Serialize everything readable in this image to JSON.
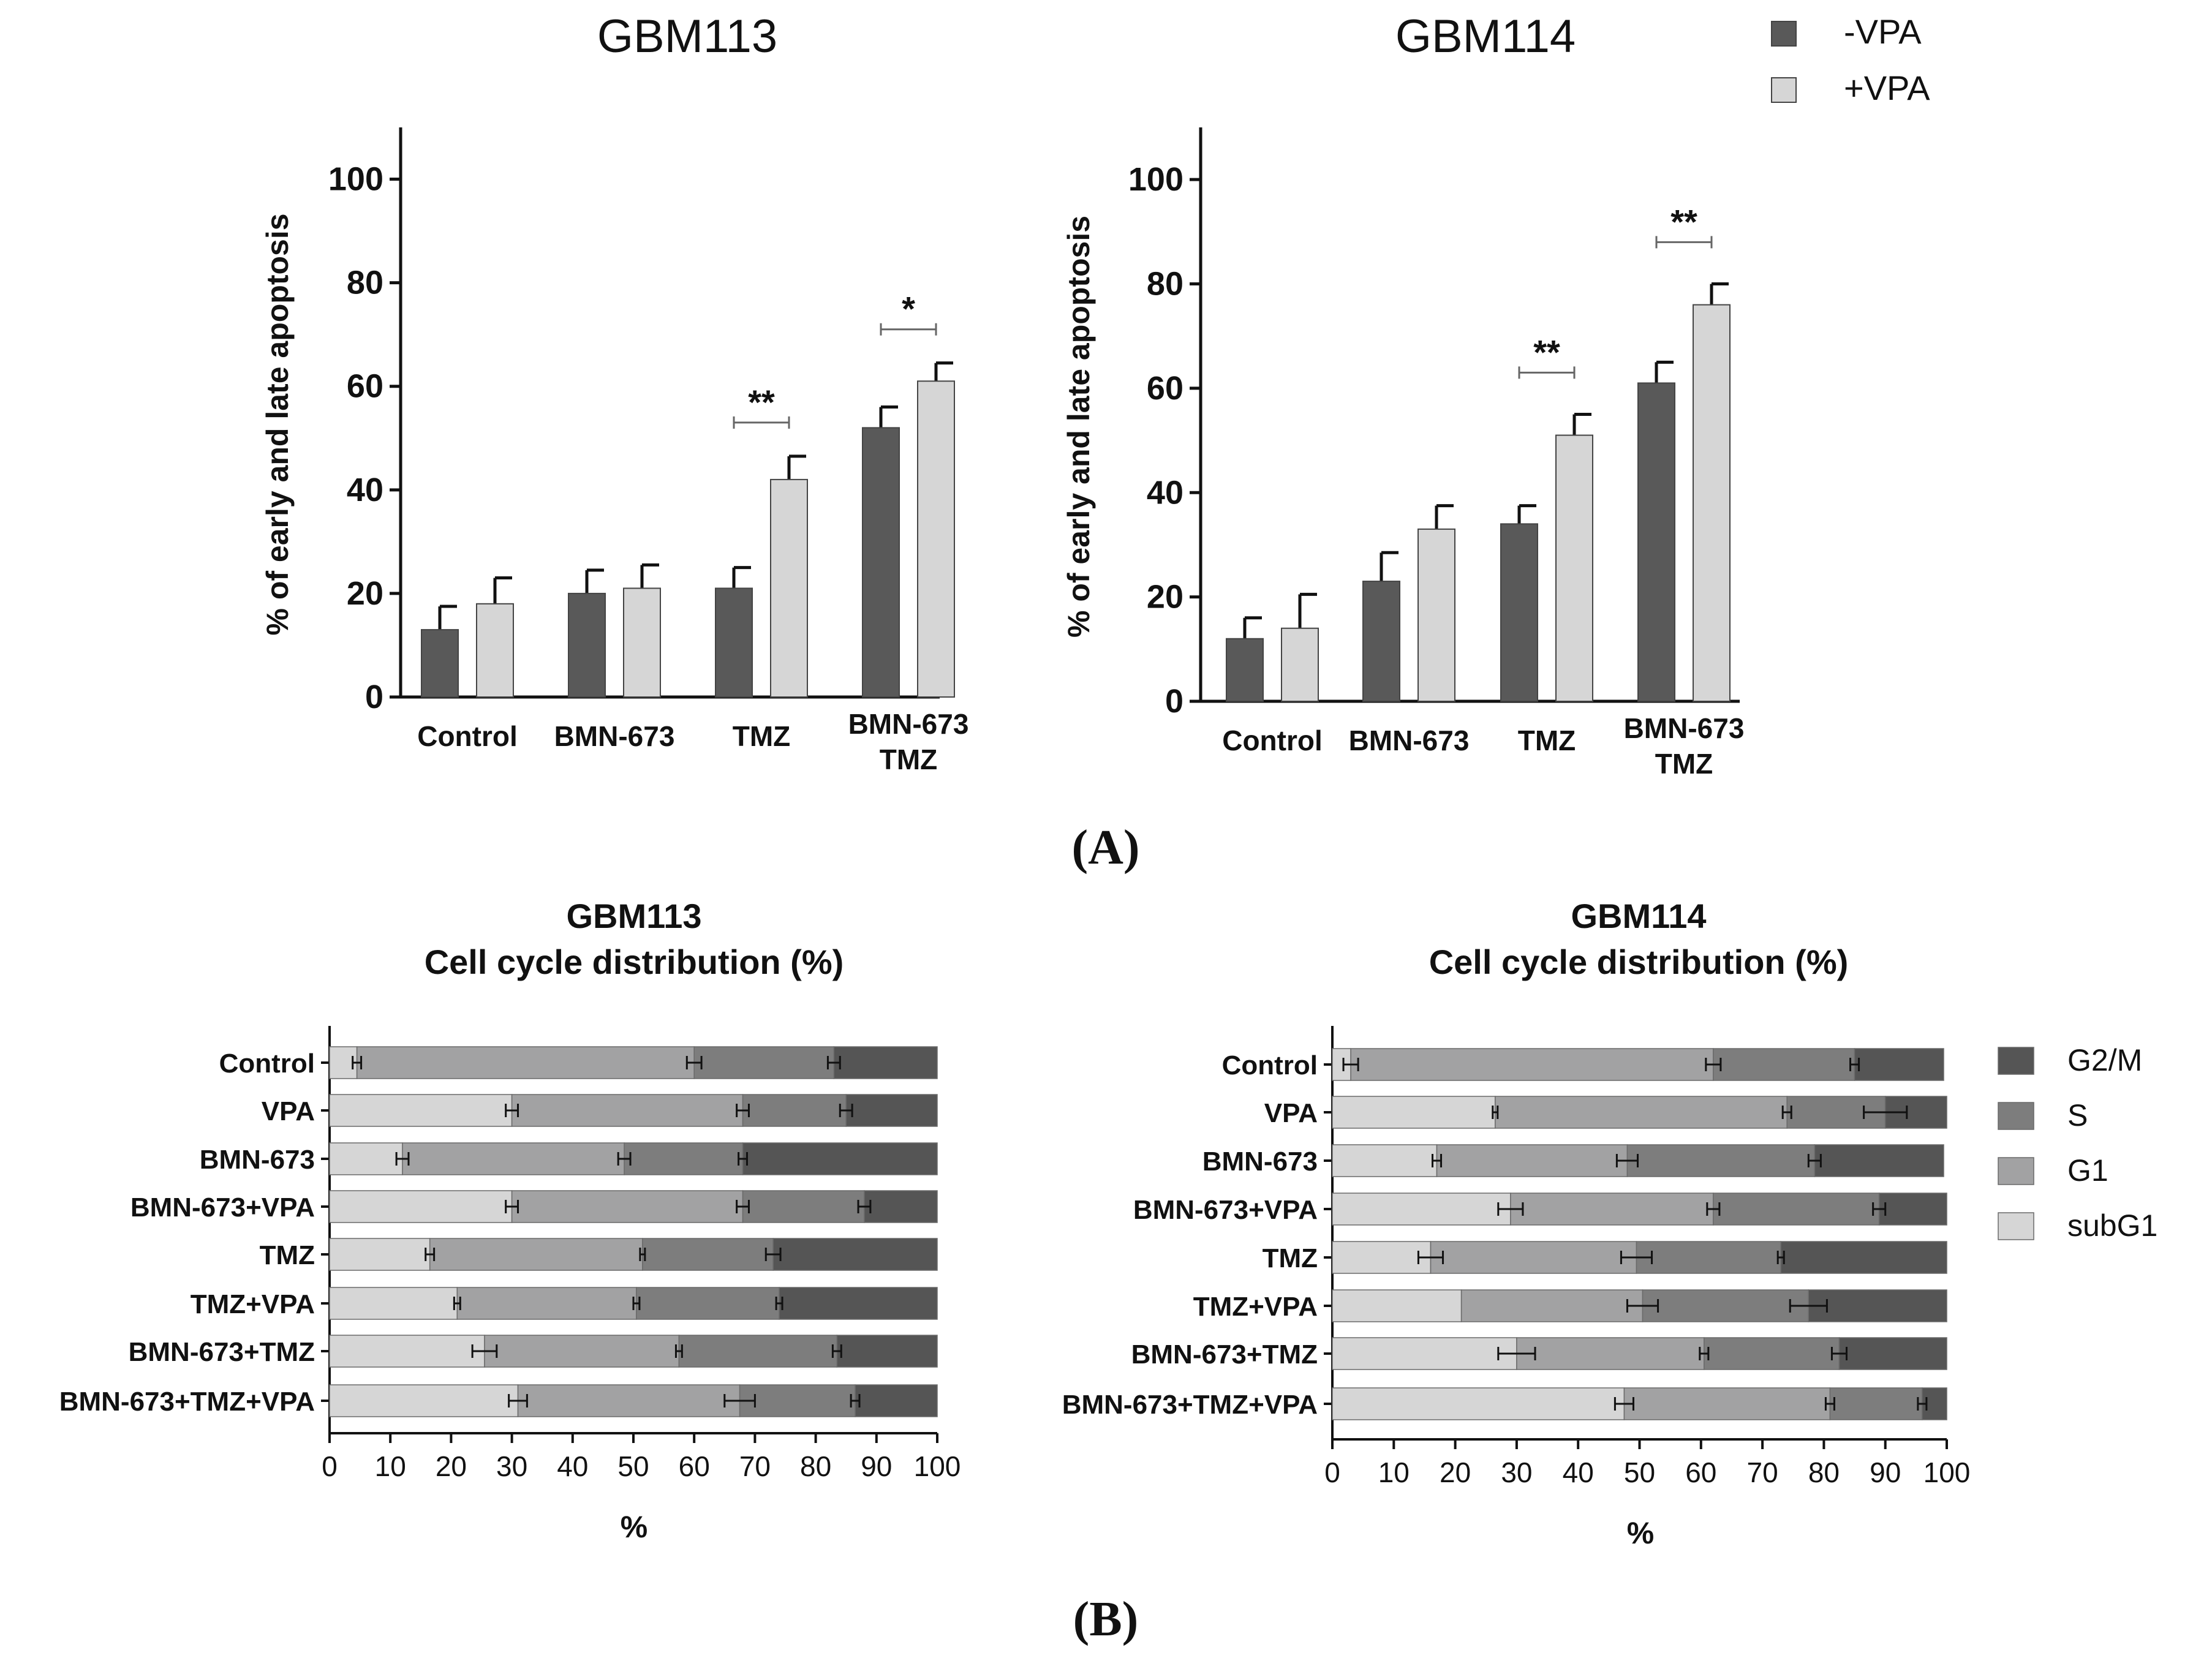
{
  "colors": {
    "dark": "#595959",
    "light": "#d6d6d6",
    "g2m": "#555555",
    "s": "#7d7d7d",
    "g1": "#a2a2a3",
    "subg1": "#d6d6d6",
    "axis": "#111111"
  },
  "panel_labels": {
    "a": "(A)",
    "b": "(B)"
  },
  "apoptosis_legend": [
    {
      "label": "-VPA",
      "color": "#595959"
    },
    {
      "label": "+VPA",
      "color": "#d6d6d6"
    }
  ],
  "cellcycle_legend": [
    {
      "label": "G2/M",
      "color": "#555555"
    },
    {
      "label": "S",
      "color": "#7d7d7d"
    },
    {
      "label": "G1",
      "color": "#a2a2a3"
    },
    {
      "label": "subG1",
      "color": "#d6d6d6"
    }
  ],
  "chart_data": [
    {
      "type": "bar",
      "title": "GBM113",
      "ylabel": "% of early and late apoptosis",
      "xlabel": "",
      "ylim": [
        0,
        110
      ],
      "yticks": [
        0,
        20,
        40,
        60,
        80,
        100
      ],
      "categories": [
        "Control",
        "BMN-673",
        "TMZ",
        "BMN-673\nTMZ"
      ],
      "series": [
        {
          "name": "-VPA",
          "values": [
            13,
            20,
            21,
            52
          ],
          "errors": [
            4.5,
            4.5,
            4,
            4
          ]
        },
        {
          "name": "+VPA",
          "values": [
            18,
            21,
            42,
            61
          ],
          "errors": [
            5,
            4.5,
            4.5,
            3.5
          ]
        }
      ],
      "significance": [
        {
          "category": 2,
          "label": "**",
          "y": 53
        },
        {
          "category": 3,
          "label": "*",
          "y": 71
        }
      ]
    },
    {
      "type": "bar",
      "title": "GBM114",
      "ylabel": "% of early and late apoptosis",
      "xlabel": "",
      "ylim": [
        0,
        110
      ],
      "yticks": [
        0,
        20,
        40,
        60,
        80,
        100
      ],
      "categories": [
        "Control",
        "BMN-673",
        "TMZ",
        "BMN-673\nTMZ"
      ],
      "series": [
        {
          "name": "-VPA",
          "values": [
            12,
            23,
            34,
            61
          ],
          "errors": [
            4,
            5.5,
            3.5,
            4
          ]
        },
        {
          "name": "+VPA",
          "values": [
            14,
            33,
            51,
            76
          ],
          "errors": [
            6.5,
            4.5,
            4,
            4
          ]
        }
      ],
      "significance": [
        {
          "category": 2,
          "label": "**",
          "y": 63
        },
        {
          "category": 3,
          "label": "**",
          "y": 88
        }
      ]
    },
    {
      "type": "bar",
      "orientation": "horizontal",
      "stacked": true,
      "title": "GBM113\nCell cycle distribution (%)",
      "xlabel": "%",
      "ylabel": "",
      "xlim": [
        0,
        100
      ],
      "xticks": [
        0,
        10,
        20,
        30,
        40,
        50,
        60,
        70,
        80,
        90,
        100
      ],
      "categories": [
        "Control",
        "VPA",
        "BMN-673",
        "BMN-673+VPA",
        "TMZ",
        "TMZ+VPA",
        "BMN-673+TMZ",
        "BMN-673+TMZ+VPA"
      ],
      "series": [
        {
          "name": "subG1",
          "values": [
            4.5,
            30,
            12,
            30,
            16.5,
            21,
            25.5,
            31
          ],
          "errors": [
            0.7,
            1,
            1,
            1,
            0.7,
            0.5,
            2,
            1.5
          ]
        },
        {
          "name": "G1",
          "values": [
            55.5,
            38,
            36.5,
            38,
            35,
            29.5,
            32,
            36.5
          ],
          "errors": [
            1.2,
            1,
            1,
            1,
            0.4,
            0.5,
            0.5,
            2.5
          ]
        },
        {
          "name": "S",
          "values": [
            23,
            17,
            19.5,
            20,
            21.5,
            23.5,
            26,
            19
          ],
          "errors": [
            1,
            1,
            0.7,
            1,
            1.2,
            0.5,
            0.7,
            0.7
          ]
        },
        {
          "name": "G2/M",
          "values": [
            17,
            15,
            32,
            12,
            27,
            26,
            16.5,
            13.5
          ],
          "errors": [
            0,
            0,
            0,
            0,
            0,
            0,
            0,
            0
          ]
        }
      ]
    },
    {
      "type": "bar",
      "orientation": "horizontal",
      "stacked": true,
      "title": "GBM114\nCell cycle distribution (%)",
      "xlabel": "%",
      "ylabel": "",
      "xlim": [
        0,
        100
      ],
      "xticks": [
        0,
        10,
        20,
        30,
        40,
        50,
        60,
        70,
        80,
        90,
        100
      ],
      "categories": [
        "Control",
        "VPA",
        "BMN-673",
        "BMN-673+VPA",
        "TMZ",
        "TMZ+VPA",
        "BMN-673+TMZ",
        "BMN-673+TMZ+VPA"
      ],
      "series": [
        {
          "name": "subG1",
          "values": [
            3,
            26.5,
            17,
            29,
            16,
            21,
            30,
            47.5
          ],
          "errors": [
            1.2,
            0.4,
            0.7,
            2,
            2,
            0,
            3,
            1.5
          ]
        },
        {
          "name": "G1",
          "values": [
            59,
            47.5,
            31,
            33,
            33.5,
            29.5,
            30.5,
            33.5
          ],
          "errors": [
            1.2,
            0.7,
            1.7,
            1,
            2.5,
            2.5,
            0.7,
            0.7
          ]
        },
        {
          "name": "S",
          "values": [
            23,
            16,
            30.5,
            27,
            23.5,
            27,
            22,
            15
          ],
          "errors": [
            0.7,
            3.5,
            1,
            1,
            0.5,
            3,
            1.2,
            0.7
          ]
        },
        {
          "name": "G2/M",
          "values": [
            14.5,
            10,
            21,
            11,
            27,
            22.5,
            17.5,
            4
          ],
          "errors": [
            0,
            0,
            0,
            0,
            0,
            0,
            0,
            0
          ]
        }
      ]
    }
  ]
}
